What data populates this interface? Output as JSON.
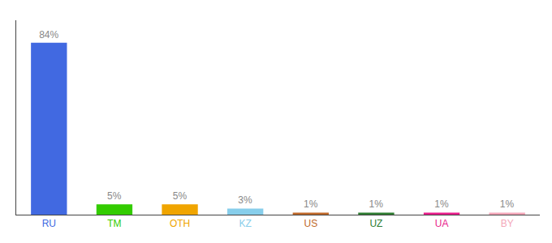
{
  "chart_data": {
    "type": "bar",
    "categories": [
      "RU",
      "TM",
      "OTH",
      "KZ",
      "US",
      "UZ",
      "UA",
      "BY"
    ],
    "values": [
      84,
      5,
      5,
      3,
      1,
      1,
      1,
      1
    ],
    "value_labels": [
      "84%",
      "5%",
      "5%",
      "3%",
      "1%",
      "1%",
      "1%",
      "1%"
    ],
    "colors": [
      "#4169e1",
      "#33cc00",
      "#f0a500",
      "#87ceeb",
      "#c0692a",
      "#2e7d32",
      "#e91e8c",
      "#f4a7b9"
    ],
    "ylim": [
      0,
      95
    ],
    "data_labels": true,
    "tick_labels": "x"
  }
}
